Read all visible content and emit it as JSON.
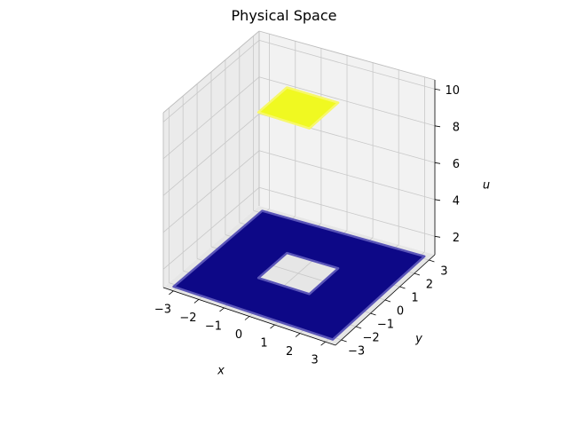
{
  "chart_data": {
    "type": "scatter3d",
    "title": "Physical Space",
    "xlabel": "x",
    "ylabel": "y",
    "zlabel": "u",
    "xlim": [
      -3.4,
      3.4
    ],
    "ylim": [
      -3.4,
      3.4
    ],
    "zlim": [
      1,
      10.5
    ],
    "xticks": [
      "−3",
      "−2",
      "−1",
      "0",
      "1",
      "2",
      "3"
    ],
    "yticks": [
      "−3",
      "−2",
      "−1",
      "0",
      "1",
      "2",
      "3"
    ],
    "zticks": [
      "2",
      "4",
      "6",
      "8",
      "10"
    ],
    "grid": true,
    "colormap": "plasma",
    "series": [
      {
        "region": "outer square minus inner hole",
        "x_range": [
          -3.14,
          3.14
        ],
        "y_range": [
          -3.14,
          3.14
        ],
        "hole_x_range": [
          -1,
          1
        ],
        "hole_y_range": [
          -1,
          1
        ],
        "u": 1,
        "color": "#0d0887"
      },
      {
        "region": "inner square",
        "x_range": [
          -1,
          1
        ],
        "y_range": [
          -1,
          1
        ],
        "u": 10,
        "color": "#f0f921"
      }
    ]
  }
}
